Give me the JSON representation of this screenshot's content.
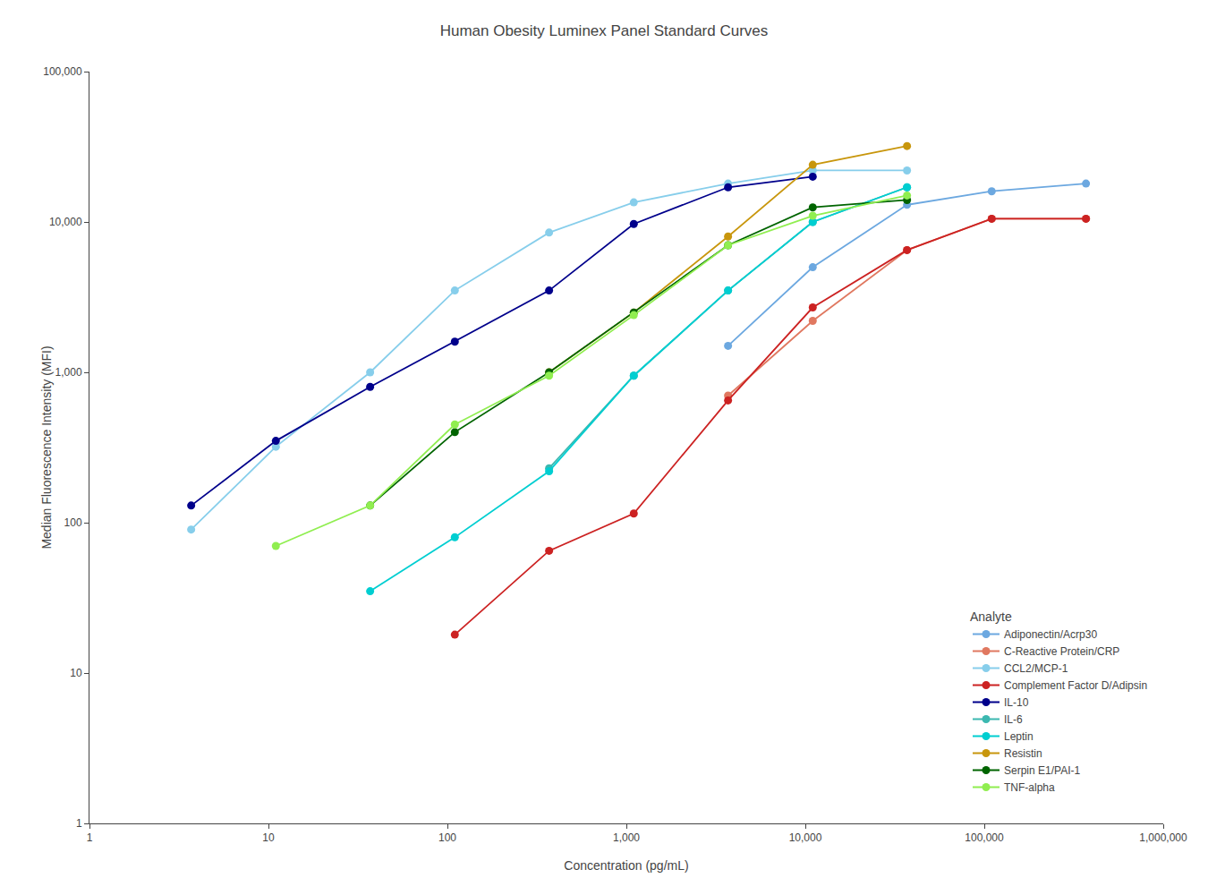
{
  "chart_data": {
    "type": "line",
    "title": "Human Obesity Luminex Panel Standard Curves",
    "xlabel": "Concentration (pg/mL)",
    "ylabel": "Median Fluorescence Intensity (MFI)",
    "legend_title": "Analyte",
    "log": true,
    "grid": false,
    "legend": "lower right",
    "marker": "circle",
    "xlim": [
      1,
      1000000
    ],
    "ylim": [
      1,
      100000
    ],
    "xticks": [
      1,
      10,
      100,
      {
        "value": 1000,
        "label": "1,000"
      },
      {
        "value": 10000,
        "label": "10,000"
      },
      {
        "value": 100000,
        "label": "100,000"
      },
      {
        "value": 1000000,
        "label": "1,000,000"
      }
    ],
    "yticks": [
      1,
      10,
      100,
      {
        "value": 1000,
        "label": "1,000"
      },
      {
        "value": 10000,
        "label": "10,000"
      },
      {
        "value": 100000,
        "label": "100,000"
      }
    ],
    "series": [
      {
        "name": "Adiponectin/Acrp30",
        "color": "#6CA8E0",
        "x": [
          3700,
          11000,
          37000,
          110000,
          370000
        ],
        "values": [
          1500,
          5000,
          13000,
          16000,
          18000
        ]
      },
      {
        "name": "C-Reactive Protein/CRP",
        "color": "#E07860",
        "x": [
          3700,
          11000,
          37000,
          110000,
          370000
        ],
        "values": [
          700,
          2200,
          6500,
          10500,
          10500
        ]
      },
      {
        "name": "CCL2/MCP-1",
        "color": "#87CEEB",
        "x": [
          3.7,
          11,
          37,
          110,
          370,
          1100,
          3700,
          11000,
          37000
        ],
        "values": [
          90,
          320,
          1000,
          3500,
          8500,
          13500,
          18000,
          22000,
          22000
        ]
      },
      {
        "name": "Complement Factor D/Adipsin",
        "color": "#CC2222",
        "x": [
          110,
          370,
          1100,
          3700,
          11000,
          37000,
          110000,
          370000
        ],
        "values": [
          18,
          65,
          115,
          650,
          2700,
          6500,
          10500,
          10500
        ]
      },
      {
        "name": "IL-10",
        "color": "#00008B",
        "x": [
          3.7,
          11,
          37,
          110,
          370,
          1100,
          3700,
          11000
        ],
        "values": [
          130,
          350,
          800,
          1600,
          3500,
          9700,
          17000,
          20000
        ]
      },
      {
        "name": "IL-6",
        "color": "#3CB8B0",
        "x": [
          370,
          1100,
          3700,
          11000,
          37000
        ],
        "values": [
          230,
          950,
          3500,
          10000,
          17000
        ]
      },
      {
        "name": "Leptin",
        "color": "#00CED1",
        "x": [
          37,
          110,
          370,
          1100,
          3700,
          11000,
          37000
        ],
        "values": [
          35,
          80,
          220,
          950,
          3500,
          10000,
          17000
        ]
      },
      {
        "name": "Resistin",
        "color": "#C8960C",
        "x": [
          370,
          1100,
          3700,
          11000,
          37000
        ],
        "values": [
          1000,
          2500,
          8000,
          24000,
          32000
        ]
      },
      {
        "name": "Serpin E1/PAI-1",
        "color": "#006400",
        "x": [
          37,
          110,
          370,
          1100,
          3700,
          11000,
          37000
        ],
        "values": [
          130,
          400,
          1000,
          2500,
          7000,
          12500,
          14000
        ]
      },
      {
        "name": "TNF-alpha",
        "color": "#90EE50",
        "x": [
          11,
          37,
          110,
          370,
          1100,
          3700,
          11000,
          37000
        ],
        "values": [
          70,
          130,
          450,
          950,
          2400,
          7000,
          11000,
          15000
        ]
      }
    ]
  }
}
